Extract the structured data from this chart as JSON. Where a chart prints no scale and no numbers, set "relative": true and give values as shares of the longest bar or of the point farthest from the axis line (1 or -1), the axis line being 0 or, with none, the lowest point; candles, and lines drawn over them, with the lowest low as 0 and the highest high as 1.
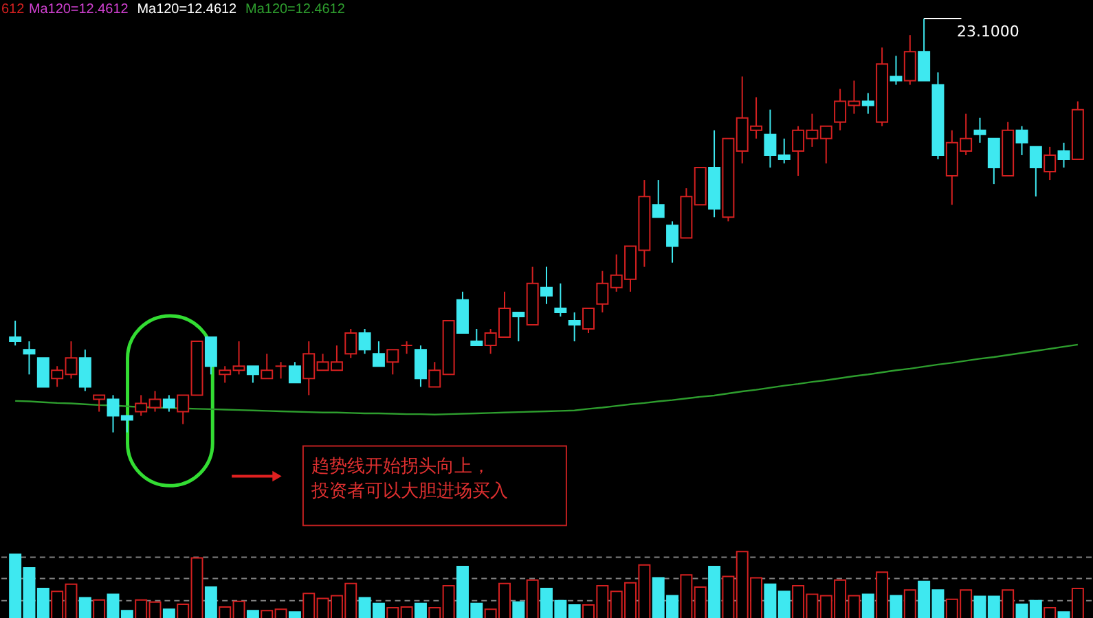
{
  "chart_data": [
    {
      "type": "candlestick",
      "relative": true,
      "categories": [
        null,
        null,
        null,
        null,
        null,
        null,
        null,
        null,
        null,
        null,
        null,
        null,
        null,
        null,
        null,
        null,
        null,
        null,
        null,
        null,
        null,
        null,
        null,
        null,
        null,
        null,
        null,
        null,
        null,
        null,
        null,
        null,
        null,
        null,
        null,
        null,
        null,
        null,
        null,
        null,
        null,
        null,
        null,
        null,
        null,
        null,
        null,
        null,
        null,
        null,
        null,
        null,
        null,
        null,
        null,
        null,
        null,
        null,
        null,
        null,
        null,
        null,
        null,
        null,
        null,
        null,
        null,
        null,
        null,
        null,
        null,
        null,
        null,
        null,
        null,
        null,
        null
      ],
      "ohlc": [
        [
          0.23,
          0.27,
          0.21,
          0.22
        ],
        [
          0.2,
          0.22,
          0.14,
          0.19
        ],
        [
          0.18,
          0.18,
          0.11,
          0.11
        ],
        [
          0.13,
          0.16,
          0.11,
          0.15
        ],
        [
          0.14,
          0.22,
          0.13,
          0.18
        ],
        [
          0.18,
          0.2,
          0.1,
          0.11
        ],
        [
          0.08,
          0.09,
          0.05,
          0.09
        ],
        [
          0.08,
          0.09,
          0.0,
          0.04
        ],
        [
          0.04,
          0.04,
          0.0,
          0.03
        ],
        [
          0.05,
          0.09,
          0.04,
          0.07
        ],
        [
          0.06,
          0.1,
          0.05,
          0.08
        ],
        [
          0.08,
          0.09,
          0.05,
          0.06
        ],
        [
          0.05,
          0.09,
          0.02,
          0.09
        ],
        [
          0.09,
          0.22,
          0.09,
          0.22
        ],
        [
          0.23,
          0.23,
          0.14,
          0.16
        ],
        [
          0.14,
          0.16,
          0.12,
          0.15
        ],
        [
          0.15,
          0.22,
          0.14,
          0.16
        ],
        [
          0.16,
          0.16,
          0.12,
          0.14
        ],
        [
          0.13,
          0.19,
          0.13,
          0.15
        ],
        [
          0.16,
          0.17,
          0.13,
          0.16
        ],
        [
          0.16,
          0.17,
          0.12,
          0.12
        ],
        [
          0.13,
          0.22,
          0.09,
          0.19
        ],
        [
          0.15,
          0.19,
          0.15,
          0.17
        ],
        [
          0.15,
          0.21,
          0.15,
          0.17
        ],
        [
          0.19,
          0.25,
          0.18,
          0.24
        ],
        [
          0.24,
          0.25,
          0.19,
          0.2
        ],
        [
          0.19,
          0.22,
          0.16,
          0.16
        ],
        [
          0.17,
          0.2,
          0.14,
          0.2
        ],
        [
          0.21,
          0.22,
          0.19,
          0.21
        ],
        [
          0.2,
          0.21,
          0.11,
          0.13
        ],
        [
          0.11,
          0.17,
          0.11,
          0.15
        ],
        [
          0.14,
          0.27,
          0.14,
          0.27
        ],
        [
          0.32,
          0.34,
          0.24,
          0.24
        ],
        [
          0.22,
          0.25,
          0.21,
          0.21
        ],
        [
          0.21,
          0.25,
          0.19,
          0.24
        ],
        [
          0.23,
          0.34,
          0.23,
          0.3
        ],
        [
          0.29,
          0.29,
          0.22,
          0.28
        ],
        [
          0.26,
          0.4,
          0.26,
          0.36
        ],
        [
          0.35,
          0.4,
          0.31,
          0.33
        ],
        [
          0.3,
          0.36,
          0.28,
          0.29
        ],
        [
          0.27,
          0.29,
          0.22,
          0.26
        ],
        [
          0.25,
          0.3,
          0.24,
          0.3
        ],
        [
          0.31,
          0.39,
          0.29,
          0.36
        ],
        [
          0.35,
          0.43,
          0.34,
          0.38
        ],
        [
          0.37,
          0.45,
          0.34,
          0.45
        ],
        [
          0.44,
          0.61,
          0.4,
          0.57
        ],
        [
          0.55,
          0.61,
          0.52,
          0.52
        ],
        [
          0.5,
          0.51,
          0.41,
          0.45
        ],
        [
          0.47,
          0.59,
          0.47,
          0.57
        ],
        [
          0.55,
          0.64,
          0.55,
          0.64
        ],
        [
          0.64,
          0.73,
          0.52,
          0.54
        ],
        [
          0.52,
          0.71,
          0.51,
          0.71
        ],
        [
          0.68,
          0.86,
          0.65,
          0.76
        ],
        [
          0.73,
          0.81,
          0.71,
          0.74
        ],
        [
          0.72,
          0.78,
          0.64,
          0.67
        ],
        [
          0.67,
          0.71,
          0.65,
          0.66
        ],
        [
          0.68,
          0.74,
          0.62,
          0.73
        ],
        [
          0.71,
          0.77,
          0.69,
          0.73
        ],
        [
          0.71,
          0.74,
          0.65,
          0.74
        ],
        [
          0.75,
          0.83,
          0.73,
          0.8
        ],
        [
          0.79,
          0.85,
          0.77,
          0.8
        ],
        [
          0.8,
          0.82,
          0.77,
          0.79
        ],
        [
          0.75,
          0.93,
          0.74,
          0.89
        ],
        [
          0.86,
          0.91,
          0.84,
          0.85
        ],
        [
          0.85,
          0.96,
          0.84,
          0.92
        ],
        [
          0.92,
          1.0,
          0.85,
          0.85
        ],
        [
          0.84,
          0.87,
          0.66,
          0.67
        ],
        [
          0.62,
          0.73,
          0.55,
          0.7
        ],
        [
          0.68,
          0.77,
          0.67,
          0.71
        ],
        [
          0.73,
          0.76,
          0.7,
          0.72
        ],
        [
          0.71,
          0.71,
          0.6,
          0.64
        ],
        [
          0.62,
          0.75,
          0.62,
          0.73
        ],
        [
          0.73,
          0.74,
          0.67,
          0.7
        ],
        [
          0.69,
          0.69,
          0.57,
          0.64
        ],
        [
          0.63,
          0.69,
          0.61,
          0.67
        ],
        [
          0.68,
          0.7,
          0.64,
          0.66
        ],
        [
          0.66,
          0.8,
          0.66,
          0.78
        ]
      ],
      "colors": [
        "#3ee8f0",
        "#3ee8f0",
        "#3ee8f0",
        "#d42020",
        "#d42020",
        "#3ee8f0",
        "#d42020",
        "#3ee8f0",
        "#3ee8f0",
        "#d42020",
        "#d42020",
        "#3ee8f0",
        "#d42020",
        "#d42020",
        "#3ee8f0",
        "#d42020",
        "#d42020",
        "#3ee8f0",
        "#d42020",
        "#d42020",
        "#3ee8f0",
        "#d42020",
        "#d42020",
        "#d42020",
        "#d42020",
        "#3ee8f0",
        "#3ee8f0",
        "#d42020",
        "#d42020",
        "#3ee8f0",
        "#d42020",
        "#d42020",
        "#3ee8f0",
        "#3ee8f0",
        "#d42020",
        "#d42020",
        "#3ee8f0",
        "#d42020",
        "#3ee8f0",
        "#3ee8f0",
        "#3ee8f0",
        "#d42020",
        "#d42020",
        "#d42020",
        "#d42020",
        "#d42020",
        "#3ee8f0",
        "#3ee8f0",
        "#d42020",
        "#d42020",
        "#3ee8f0",
        "#d42020",
        "#d42020",
        "#d42020",
        "#3ee8f0",
        "#3ee8f0",
        "#d42020",
        "#d42020",
        "#d42020",
        "#d42020",
        "#d42020",
        "#3ee8f0",
        "#d42020",
        "#3ee8f0",
        "#d42020",
        "#3ee8f0",
        "#3ee8f0",
        "#d42020",
        "#d42020",
        "#3ee8f0",
        "#3ee8f0",
        "#d42020",
        "#3ee8f0",
        "#3ee8f0",
        "#d42020",
        "#3ee8f0",
        "#d42020"
      ],
      "series": [
        {
          "type": "line",
          "name": "Ma120=12.4612",
          "color": "#2e9e2e",
          "values": [
            0.076,
            0.075,
            0.073,
            0.071,
            0.07,
            0.068,
            0.066,
            0.065,
            0.063,
            0.061,
            0.06,
            0.059,
            0.058,
            0.057,
            0.056,
            0.055,
            0.054,
            0.053,
            0.052,
            0.051,
            0.05,
            0.049,
            0.048,
            0.048,
            0.047,
            0.046,
            0.046,
            0.045,
            0.044,
            0.044,
            0.043,
            0.044,
            0.045,
            0.046,
            0.047,
            0.048,
            0.049,
            0.05,
            0.051,
            0.052,
            0.053,
            0.057,
            0.06,
            0.064,
            0.068,
            0.071,
            0.075,
            0.078,
            0.082,
            0.086,
            0.089,
            0.094,
            0.099,
            0.103,
            0.108,
            0.113,
            0.117,
            0.122,
            0.126,
            0.131,
            0.136,
            0.14,
            0.145,
            0.15,
            0.154,
            0.159,
            0.164,
            0.168,
            0.173,
            0.178,
            0.182,
            0.187,
            0.192,
            0.197,
            0.202,
            0.207,
            0.212
          ]
        }
      ],
      "annotations": [
        "612",
        "Ma120=12.4612",
        "Ma120=12.4612",
        "趋势线开始拐头向上，投资者可以大胆进场买入",
        "23.1000"
      ]
    },
    {
      "type": "bar",
      "relative": true,
      "categories": [
        null,
        null,
        null,
        null,
        null,
        null,
        null,
        null,
        null,
        null,
        null,
        null,
        null,
        null,
        null,
        null,
        null,
        null,
        null,
        null,
        null,
        null,
        null,
        null,
        null,
        null,
        null,
        null,
        null,
        null,
        null,
        null,
        null,
        null,
        null,
        null,
        null,
        null,
        null,
        null,
        null,
        null,
        null,
        null,
        null,
        null,
        null,
        null,
        null,
        null,
        null,
        null,
        null,
        null,
        null,
        null,
        null,
        null,
        null,
        null,
        null,
        null,
        null,
        null,
        null,
        null,
        null,
        null,
        null,
        null,
        null,
        null,
        null,
        null,
        null,
        null,
        null
      ],
      "values": [
        0.96,
        0.77,
        0.48,
        0.44,
        0.54,
        0.35,
        0.32,
        0.4,
        0.17,
        0.32,
        0.29,
        0.19,
        0.26,
        0.91,
        0.5,
        0.22,
        0.3,
        0.17,
        0.17,
        0.19,
        0.15,
        0.41,
        0.34,
        0.38,
        0.55,
        0.35,
        0.27,
        0.21,
        0.22,
        0.27,
        0.21,
        0.52,
        0.79,
        0.27,
        0.19,
        0.55,
        0.29,
        0.6,
        0.48,
        0.31,
        0.25,
        0.25,
        0.52,
        0.44,
        0.56,
        0.81,
        0.63,
        0.38,
        0.67,
        0.5,
        0.79,
        0.65,
        1.0,
        0.63,
        0.54,
        0.44,
        0.52,
        0.4,
        0.38,
        0.6,
        0.38,
        0.4,
        0.71,
        0.38,
        0.46,
        0.58,
        0.46,
        0.33,
        0.46,
        0.37,
        0.37,
        0.46,
        0.26,
        0.31,
        0.21,
        0.15,
        0.48
      ],
      "colors": [
        "#3ee8f0",
        "#3ee8f0",
        "#3ee8f0",
        "#d42020",
        "#d42020",
        "#3ee8f0",
        "#d42020",
        "#3ee8f0",
        "#3ee8f0",
        "#d42020",
        "#d42020",
        "#3ee8f0",
        "#d42020",
        "#d42020",
        "#3ee8f0",
        "#d42020",
        "#d42020",
        "#3ee8f0",
        "#d42020",
        "#d42020",
        "#3ee8f0",
        "#d42020",
        "#d42020",
        "#d42020",
        "#d42020",
        "#3ee8f0",
        "#3ee8f0",
        "#d42020",
        "#d42020",
        "#3ee8f0",
        "#d42020",
        "#d42020",
        "#3ee8f0",
        "#3ee8f0",
        "#d42020",
        "#d42020",
        "#3ee8f0",
        "#d42020",
        "#3ee8f0",
        "#3ee8f0",
        "#3ee8f0",
        "#d42020",
        "#d42020",
        "#d42020",
        "#d42020",
        "#d42020",
        "#3ee8f0",
        "#3ee8f0",
        "#d42020",
        "#d42020",
        "#3ee8f0",
        "#d42020",
        "#d42020",
        "#d42020",
        "#3ee8f0",
        "#3ee8f0",
        "#d42020",
        "#d42020",
        "#d42020",
        "#d42020",
        "#d42020",
        "#3ee8f0",
        "#d42020",
        "#3ee8f0",
        "#d42020",
        "#3ee8f0",
        "#3ee8f0",
        "#d42020",
        "#d42020",
        "#3ee8f0",
        "#3ee8f0",
        "#d42020",
        "#3ee8f0",
        "#3ee8f0",
        "#d42020",
        "#3ee8f0",
        "#d42020"
      ],
      "ref_lines": [
        {
          "axis": "y",
          "value": 0.92,
          "color": "#808080",
          "line_style": "dashed"
        },
        {
          "axis": "y",
          "value": 0.62,
          "color": "#808080",
          "line_style": "dashed"
        },
        {
          "axis": "y",
          "value": 0.31,
          "color": "#808080",
          "line_style": "dashed"
        }
      ]
    }
  ]
}
